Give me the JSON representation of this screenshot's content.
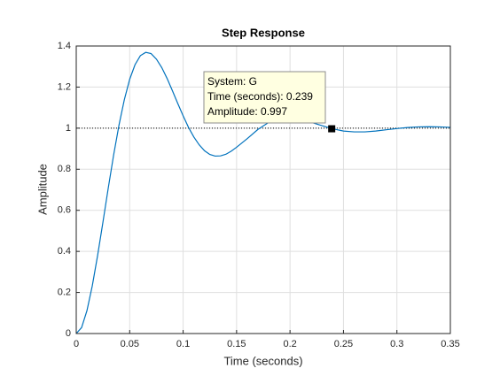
{
  "chart_data": {
    "type": "line",
    "title": "Step Response",
    "x_label": "Time (seconds)",
    "y_label": "Amplitude",
    "x": [
      0,
      0.005,
      0.01,
      0.015,
      0.02,
      0.025,
      0.03,
      0.035,
      0.04,
      0.045,
      0.05,
      0.055,
      0.06,
      0.065,
      0.07,
      0.075,
      0.08,
      0.085,
      0.09,
      0.095,
      0.1,
      0.105,
      0.11,
      0.115,
      0.12,
      0.125,
      0.13,
      0.135,
      0.14,
      0.145,
      0.15,
      0.16,
      0.17,
      0.18,
      0.19,
      0.2,
      0.21,
      0.22,
      0.23,
      0.24,
      0.25,
      0.26,
      0.27,
      0.28,
      0.29,
      0.3,
      0.31,
      0.32,
      0.33,
      0.34,
      0.35
    ],
    "series": [
      {
        "name": "G",
        "color": "#0072bd",
        "values": [
          0,
          0.029,
          0.111,
          0.232,
          0.38,
          0.543,
          0.71,
          0.87,
          1.015,
          1.139,
          1.238,
          1.309,
          1.353,
          1.369,
          1.363,
          1.336,
          1.295,
          1.242,
          1.182,
          1.12,
          1.06,
          1.004,
          0.957,
          0.919,
          0.89,
          0.872,
          0.864,
          0.865,
          0.873,
          0.888,
          0.907,
          0.949,
          0.994,
          1.028,
          1.048,
          1.05,
          1.043,
          1.028,
          1.012,
          0.997,
          0.986,
          0.982,
          0.982,
          0.986,
          0.992,
          0.998,
          1.003,
          1.006,
          1.007,
          1.006,
          1.004
        ]
      }
    ],
    "reference": 1,
    "xlim": [
      0,
      0.35
    ],
    "ylim": [
      0,
      1.4
    ],
    "xticks": [
      0,
      0.05,
      0.1,
      0.15,
      0.2,
      0.25,
      0.3,
      0.35
    ],
    "yticks": [
      0,
      0.2,
      0.4,
      0.6,
      0.8,
      1,
      1.2,
      1.4
    ],
    "grid": true,
    "datatip": {
      "x": 0.239,
      "y": 0.997,
      "lines": [
        "System: G",
        "Time (seconds): 0.239",
        "Amplitude: 0.997"
      ]
    }
  }
}
